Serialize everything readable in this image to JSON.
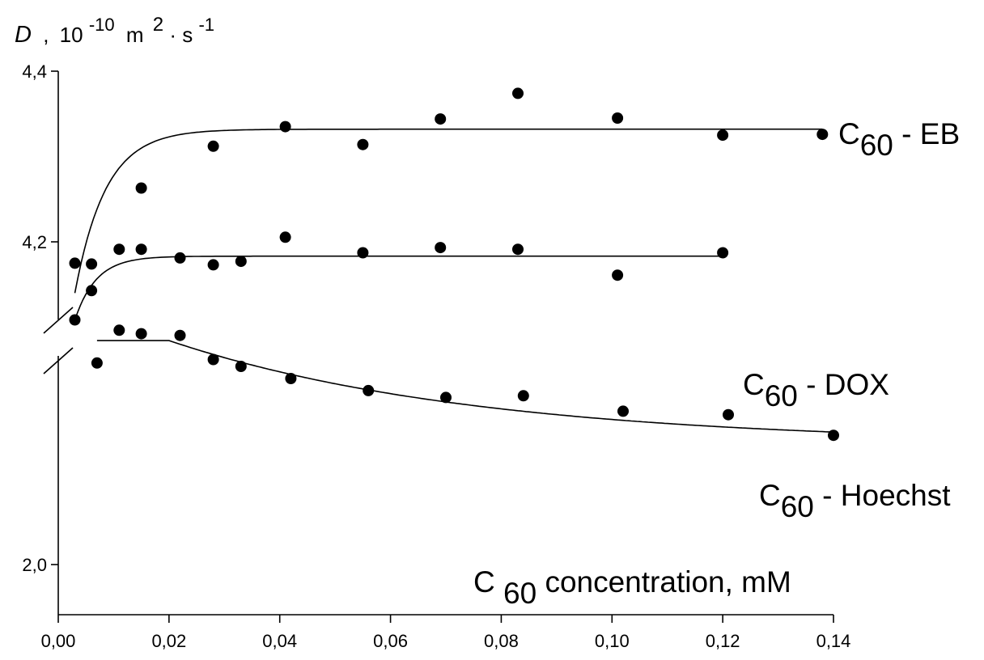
{
  "chart_data": {
    "type": "scatter",
    "title": "",
    "ylabel": {
      "symbol": "D",
      "sep": ",",
      "mantissa": "10",
      "exponent": "-10",
      "unit1": "m",
      "unit1_exp": "2",
      "dot": "·",
      "unit2": "s",
      "unit2_exp": "-1"
    },
    "xlabel": {
      "base": "C",
      "subscript": "60",
      "rest": " concentration, mM"
    },
    "xlim": [
      0,
      0.14
    ],
    "x_ticks": [
      "0,00",
      "0,02",
      "0,04",
      "0,06",
      "0,08",
      "0,10",
      "0,12",
      "0,14"
    ],
    "y_axis_broken": true,
    "y_ticks_upper": [
      {
        "value": 4.4,
        "label": "4,4"
      },
      {
        "value": 4.2,
        "label": "4,2"
      }
    ],
    "y_ticks_lower": [
      {
        "value": 2.0,
        "label": "2,0"
      }
    ],
    "series": [
      {
        "name": "C60 - EB",
        "label_base": "C",
        "label_sub": "60",
        "label_rest": " - EB",
        "panel": "upper",
        "points": [
          [
            0.003,
            4.175
          ],
          [
            0.006,
            4.174
          ],
          [
            0.015,
            4.263
          ],
          [
            0.028,
            4.312
          ],
          [
            0.041,
            4.335
          ],
          [
            0.055,
            4.314
          ],
          [
            0.069,
            4.344
          ],
          [
            0.083,
            4.374
          ],
          [
            0.101,
            4.345
          ],
          [
            0.12,
            4.325
          ],
          [
            0.138,
            4.326
          ]
        ],
        "fit": {
          "kind": "exp",
          "plateau": 4.332,
          "start": 4.14,
          "x0": 0.003,
          "k": 180
        }
      },
      {
        "name": "C60 - DOX",
        "label_base": "C",
        "label_sub": "60",
        "label_rest": " - DOX",
        "panel": "lower",
        "points": [
          [
            0.003,
            2.142
          ],
          [
            0.006,
            2.159
          ],
          [
            0.011,
            2.183
          ],
          [
            0.015,
            2.183
          ],
          [
            0.022,
            2.178
          ],
          [
            0.028,
            2.174
          ],
          [
            0.033,
            2.176
          ],
          [
            0.041,
            2.19
          ],
          [
            0.055,
            2.181
          ],
          [
            0.069,
            2.184
          ],
          [
            0.083,
            2.183
          ],
          [
            0.101,
            2.168
          ],
          [
            0.12,
            2.181
          ]
        ],
        "fit": {
          "kind": "exp",
          "plateau": 2.179,
          "start": 2.142,
          "x0": 0.003,
          "k": 260
        }
      },
      {
        "name": "C60 - Hoechst",
        "label_base": "C",
        "label_sub": "60",
        "label_rest": " - Hoechst",
        "panel": "lower",
        "points": [
          [
            0.007,
            2.117
          ],
          [
            0.011,
            2.136
          ],
          [
            0.015,
            2.134
          ],
          [
            0.022,
            2.133
          ],
          [
            0.028,
            2.119
          ],
          [
            0.033,
            2.115
          ],
          [
            0.042,
            2.108
          ],
          [
            0.056,
            2.101
          ],
          [
            0.07,
            2.097
          ],
          [
            0.084,
            2.098
          ],
          [
            0.102,
            2.089
          ],
          [
            0.121,
            2.087
          ],
          [
            0.14,
            2.075
          ]
        ],
        "fit": {
          "kind": "flat-decay",
          "x_start": 0.007,
          "x_knee": 0.02,
          "plateau": 2.13,
          "asymptote": 2.07,
          "amp": 0.06,
          "k": 18
        }
      }
    ]
  }
}
